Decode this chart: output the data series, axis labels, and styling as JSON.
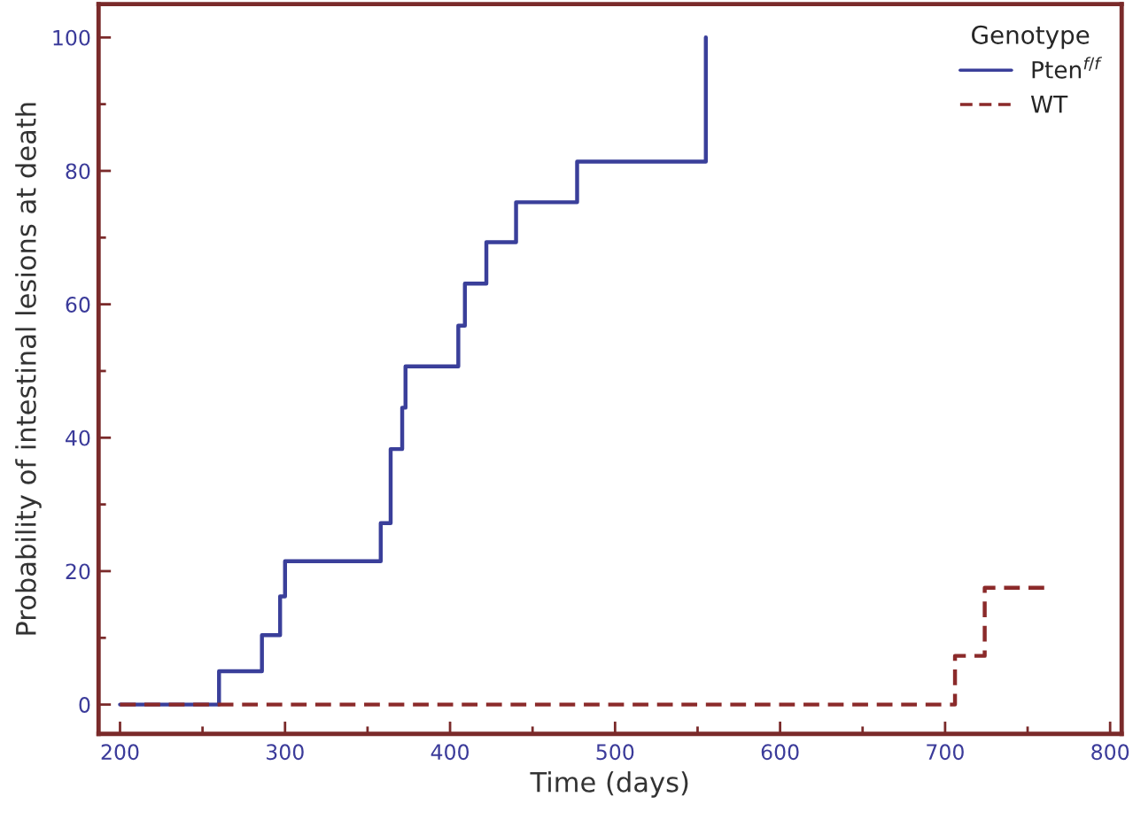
{
  "chart_data": {
    "type": "step",
    "xlabel": "Time (days)",
    "ylabel": "Probability of intestinal lesions at death",
    "legend_title": "Genotype",
    "series": [
      {
        "name": "Pten$^{f/f}$",
        "color": "#3a3f9a",
        "line_style": "solid",
        "x": [
          200,
          260,
          286,
          297,
          300,
          358,
          364,
          371,
          373,
          405,
          409,
          422,
          440,
          477,
          555
        ],
        "values": [
          0,
          5,
          10.4,
          16.2,
          21.5,
          27.2,
          38.3,
          44.5,
          50.7,
          56.8,
          63.1,
          69.3,
          75.3,
          81.4,
          100
        ]
      },
      {
        "name": "WT",
        "color": "#8b2a2a",
        "line_style": "dashed",
        "x": [
          200,
          706,
          724,
          763
        ],
        "values": [
          0,
          7.3,
          17.5,
          17.5
        ]
      }
    ],
    "xlim": [
      187,
      807
    ],
    "ylim": [
      -4.4,
      105
    ],
    "xticks": [
      200,
      {
        "value": 250,
        "label": null
      },
      300,
      {
        "value": 350,
        "label": null
      },
      400,
      {
        "value": 450,
        "label": null
      },
      500,
      {
        "value": 550,
        "label": null
      },
      600,
      {
        "value": 650,
        "label": null
      },
      700,
      {
        "value": 750,
        "label": null
      },
      800
    ],
    "yticks": [
      0,
      {
        "value": 10,
        "label": null
      },
      20,
      {
        "value": 30,
        "label": null
      },
      40,
      {
        "value": 50,
        "label": null
      },
      60,
      {
        "value": 70,
        "label": null
      },
      80,
      {
        "value": 90,
        "label": null
      },
      100
    ],
    "grid": false,
    "legend": "top right"
  }
}
